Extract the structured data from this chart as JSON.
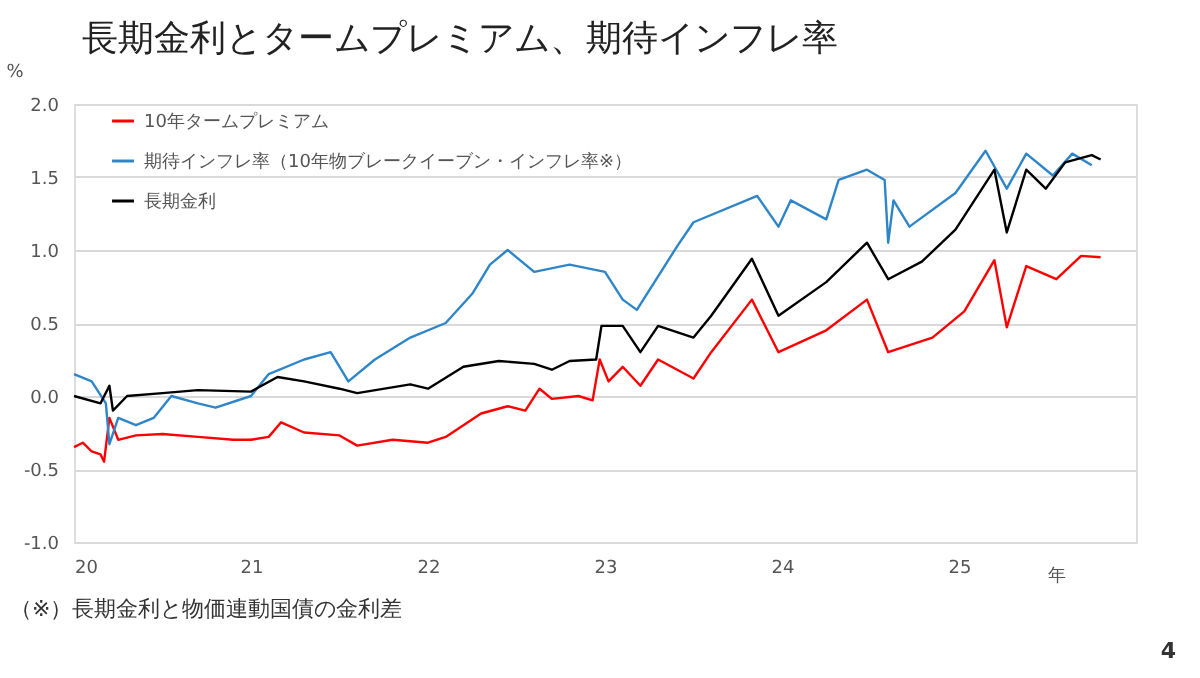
{
  "chart_data": {
    "type": "line",
    "title": "長期金利とタームプレミアム、期待インフレ率",
    "ylabel": "%",
    "xlabel": "年",
    "xlim": [
      20,
      26
    ],
    "xticks": [
      20,
      21,
      22,
      23,
      24,
      25
    ],
    "ylim": [
      -1.0,
      2.0
    ],
    "yticks": [
      {
        "value": -1.0,
        "label": "-1.0"
      },
      {
        "value": -0.5,
        "label": "-0.5"
      },
      {
        "value": 0.0,
        "label": "0.0"
      },
      {
        "value": 0.5,
        "label": "0.5"
      },
      {
        "value": 1.0,
        "label": "1.0"
      },
      {
        "value": 1.5,
        "label": "1.5"
      },
      {
        "value": 2.0,
        "label": "2.0"
      }
    ],
    "grid": "y",
    "legend": "top left",
    "line_style": "solid",
    "marker": "none",
    "series": [
      {
        "name": "10年タームプレミアム",
        "color": "#ff0000",
        "x": [
          20.0,
          20.05,
          20.1,
          20.15,
          20.17,
          20.2,
          20.25,
          20.35,
          20.5,
          20.7,
          20.9,
          21.0,
          21.1,
          21.17,
          21.3,
          21.5,
          21.6,
          21.8,
          22.0,
          22.1,
          22.3,
          22.45,
          22.55,
          22.63,
          22.7,
          22.85,
          22.93,
          22.97,
          23.02,
          23.1,
          23.2,
          23.3,
          23.5,
          23.6,
          23.83,
          23.98,
          24.25,
          24.48,
          24.6,
          24.85,
          25.03,
          25.2,
          25.27,
          25.38,
          25.55,
          25.69,
          25.8
        ],
        "values": [
          -0.35,
          -0.32,
          -0.38,
          -0.4,
          -0.45,
          -0.15,
          -0.3,
          -0.27,
          -0.26,
          -0.28,
          -0.3,
          -0.3,
          -0.28,
          -0.18,
          -0.25,
          -0.27,
          -0.34,
          -0.3,
          -0.32,
          -0.28,
          -0.12,
          -0.07,
          -0.1,
          0.05,
          -0.02,
          0.0,
          -0.03,
          0.25,
          0.1,
          0.2,
          0.07,
          0.25,
          0.12,
          0.3,
          0.66,
          0.3,
          0.45,
          0.66,
          0.3,
          0.4,
          0.58,
          0.93,
          0.47,
          0.89,
          0.8,
          0.96,
          0.95
        ]
      },
      {
        "name": "期待インフレ率（10年物ブレークイーブン・インフレ率※）",
        "color": "#2e86c8",
        "x": [
          20.0,
          20.1,
          20.18,
          20.2,
          20.25,
          20.35,
          20.45,
          20.55,
          20.7,
          20.8,
          21.0,
          21.1,
          21.3,
          21.45,
          21.55,
          21.7,
          21.9,
          22.1,
          22.25,
          22.35,
          22.45,
          22.6,
          22.8,
          23.0,
          23.1,
          23.18,
          23.41,
          23.5,
          23.86,
          23.98,
          24.05,
          24.25,
          24.32,
          24.48,
          24.58,
          24.6,
          24.63,
          24.72,
          24.98,
          25.15,
          25.27,
          25.38,
          25.53,
          25.64,
          25.75
        ],
        "values": [
          0.15,
          0.1,
          -0.05,
          -0.33,
          -0.15,
          -0.2,
          -0.15,
          0.0,
          -0.05,
          -0.08,
          0.0,
          0.15,
          0.25,
          0.3,
          0.1,
          0.25,
          0.4,
          0.5,
          0.7,
          0.9,
          1.0,
          0.85,
          0.9,
          0.85,
          0.66,
          0.59,
          1.03,
          1.19,
          1.37,
          1.16,
          1.34,
          1.21,
          1.48,
          1.55,
          1.48,
          1.05,
          1.34,
          1.16,
          1.39,
          1.68,
          1.42,
          1.66,
          1.51,
          1.66,
          1.58
        ]
      },
      {
        "name": "長期金利",
        "color": "#000000",
        "x": [
          20.0,
          20.15,
          20.2,
          20.22,
          20.3,
          20.5,
          20.7,
          21.0,
          21.15,
          21.3,
          21.5,
          21.6,
          21.9,
          22.0,
          22.2,
          22.4,
          22.6,
          22.7,
          22.8,
          22.95,
          22.98,
          23.1,
          23.2,
          23.3,
          23.5,
          23.6,
          23.83,
          23.98,
          24.25,
          24.48,
          24.6,
          24.79,
          24.98,
          25.2,
          25.27,
          25.38,
          25.49,
          25.6,
          25.75,
          25.8
        ],
        "values": [
          0.0,
          -0.05,
          0.07,
          -0.1,
          0.0,
          0.02,
          0.04,
          0.03,
          0.13,
          0.1,
          0.05,
          0.02,
          0.08,
          0.05,
          0.2,
          0.24,
          0.22,
          0.18,
          0.24,
          0.25,
          0.48,
          0.48,
          0.3,
          0.48,
          0.4,
          0.55,
          0.94,
          0.55,
          0.78,
          1.05,
          0.8,
          0.92,
          1.14,
          1.55,
          1.12,
          1.55,
          1.42,
          1.6,
          1.65,
          1.62
        ]
      }
    ],
    "annotations": [
      "（※）長期金利と物価連動国債の金利差",
      "4"
    ]
  }
}
